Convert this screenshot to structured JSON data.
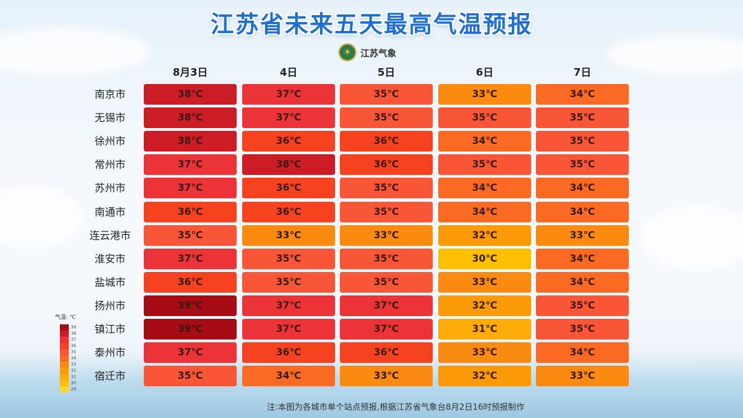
{
  "title": "江苏省未来五天最高气温预报",
  "logo_text": "江苏气象",
  "note": "注:本图为各城市单个站点预报,根据江苏省气象台8月2日16时预报制作",
  "legend": {
    "title": "气温: ℃",
    "levels": [
      39,
      38,
      37,
      36,
      35,
      34,
      33,
      32,
      31,
      30,
      29
    ],
    "colors": {
      "39": "#a70b13",
      "38": "#cc1c25",
      "37": "#ec3338",
      "36": "#f7421f",
      "35": "#f85637",
      "34": "#fb6a23",
      "33": "#fb8a10",
      "32": "#fc9a08",
      "31": "#fdac0a",
      "30": "#fdc000",
      "29": "#fdd335"
    }
  },
  "chart_data": {
    "type": "table",
    "title": "江苏省未来五天最高气温预报",
    "unit": "℃",
    "columns": [
      "8月3日",
      "4日",
      "5日",
      "6日",
      "7日"
    ],
    "rows": [
      {
        "city": "南京市",
        "values": [
          38,
          37,
          35,
          33,
          34
        ]
      },
      {
        "city": "无锡市",
        "values": [
          38,
          37,
          35,
          35,
          35
        ]
      },
      {
        "city": "徐州市",
        "values": [
          38,
          36,
          36,
          34,
          35
        ]
      },
      {
        "city": "常州市",
        "values": [
          37,
          38,
          36,
          35,
          35
        ]
      },
      {
        "city": "苏州市",
        "values": [
          37,
          36,
          35,
          34,
          34
        ]
      },
      {
        "city": "南通市",
        "values": [
          36,
          36,
          35,
          34,
          34
        ]
      },
      {
        "city": "连云港市",
        "values": [
          35,
          33,
          33,
          32,
          33
        ]
      },
      {
        "city": "淮安市",
        "values": [
          37,
          35,
          35,
          30,
          34
        ]
      },
      {
        "city": "盐城市",
        "values": [
          36,
          35,
          35,
          33,
          34
        ]
      },
      {
        "city": "扬州市",
        "values": [
          39,
          37,
          37,
          32,
          35
        ]
      },
      {
        "city": "镇江市",
        "values": [
          39,
          37,
          37,
          31,
          35
        ]
      },
      {
        "city": "泰州市",
        "values": [
          37,
          36,
          36,
          33,
          34
        ]
      },
      {
        "city": "宿迁市",
        "values": [
          35,
          34,
          33,
          32,
          33
        ]
      }
    ]
  }
}
